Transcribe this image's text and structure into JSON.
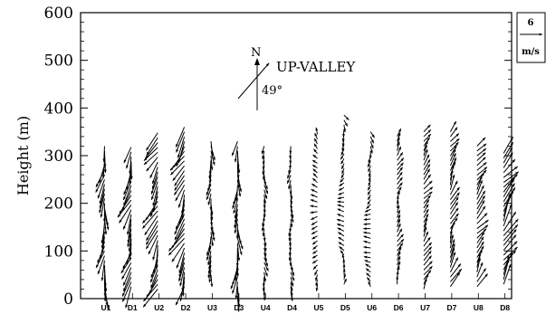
{
  "chart_data": {
    "type": "vector-profile",
    "ylabel": "Height (m)",
    "ylim": [
      0,
      600
    ],
    "yticks": [
      "0",
      "100",
      "200",
      "300",
      "400",
      "500",
      "600"
    ],
    "categories": [
      "U1",
      "D1",
      "U2",
      "D2",
      "U3",
      "D3",
      "U4",
      "D4",
      "U5",
      "D5",
      "U6",
      "D6",
      "U7",
      "D7",
      "U8",
      "D8"
    ],
    "annotation": {
      "north_label": "N",
      "direction_label": "UP-VALLEY",
      "angle_label": "49°",
      "angle_deg": 49
    },
    "reference_vector": {
      "value": "6",
      "unit": "m/s",
      "speed": 6
    },
    "profiles": [
      {
        "name": "U1",
        "top": 320,
        "bottom": 20,
        "speed": [
          9,
          8
        ],
        "dir": [
          265,
          260
        ]
      },
      {
        "name": "D1",
        "top": 318,
        "bottom": 25,
        "speed": [
          9,
          9
        ],
        "dir": [
          255,
          250
        ]
      },
      {
        "name": "U2",
        "top": 348,
        "bottom": 20,
        "speed": [
          10,
          9
        ],
        "dir": [
          250,
          240
        ]
      },
      {
        "name": "D2",
        "top": 360,
        "bottom": 25,
        "speed": [
          10,
          9
        ],
        "dir": [
          250,
          240
        ]
      },
      {
        "name": "U3",
        "top": 330,
        "bottom": 50,
        "speed": [
          6,
          6
        ],
        "dir": [
          270,
          265
        ]
      },
      {
        "name": "D3",
        "top": 330,
        "bottom": 5,
        "speed": [
          8,
          7
        ],
        "dir": [
          270,
          265
        ]
      },
      {
        "name": "U4",
        "top": 320,
        "bottom": 15,
        "speed": [
          4,
          4
        ],
        "dir": [
          280,
          270
        ]
      },
      {
        "name": "D4",
        "top": 320,
        "bottom": 15,
        "speed": [
          4,
          4
        ],
        "dir": [
          275,
          265
        ]
      },
      {
        "name": "U5",
        "top": 345,
        "bottom": 30,
        "speed": [
          3,
          3
        ],
        "dir": [
          260,
          100
        ]
      },
      {
        "name": "D5",
        "top": 385,
        "bottom": 30,
        "speed": [
          3,
          3
        ],
        "dir": [
          80,
          300
        ]
      },
      {
        "name": "U6",
        "top": 350,
        "bottom": 25,
        "speed": [
          3,
          3
        ],
        "dir": [
          120,
          300
        ]
      },
      {
        "name": "D6",
        "top": 340,
        "bottom": 30,
        "speed": [
          4,
          4
        ],
        "dir": [
          70,
          60
        ]
      },
      {
        "name": "U7",
        "top": 350,
        "bottom": 20,
        "speed": [
          5,
          5
        ],
        "dir": [
          60,
          55
        ]
      },
      {
        "name": "D7",
        "top": 350,
        "bottom": 25,
        "speed": [
          7,
          6
        ],
        "dir": [
          70,
          60
        ]
      },
      {
        "name": "U8",
        "top": 320,
        "bottom": 25,
        "speed": [
          7,
          6
        ],
        "dir": [
          60,
          50
        ]
      },
      {
        "name": "D8",
        "top": 305,
        "bottom": 30,
        "speed": [
          10,
          9
        ],
        "dir": [
          60,
          55
        ]
      }
    ]
  }
}
